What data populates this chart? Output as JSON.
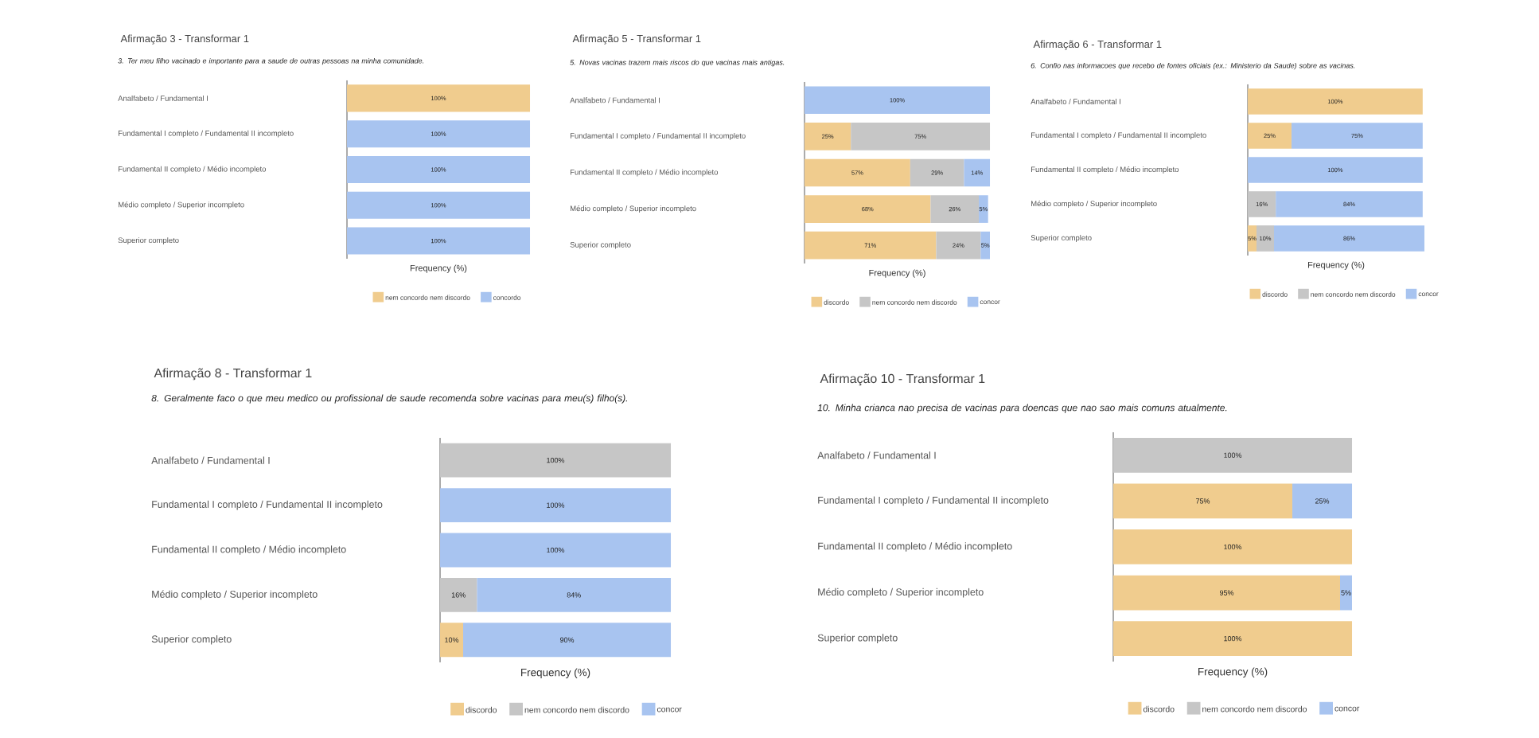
{
  "chart_data": [
    {
      "type": "bar",
      "orientation": "horizontal",
      "stacked": true,
      "legend": "bottom",
      "title": "Afirmação 3 - Transformar 1",
      "subtitle": "3. Ter meu filho vacinado e importante para a saude de outras pessoas na minha comunidade.",
      "xlabel": "Frequency (%)",
      "categories": [
        "Analfabeto / Fundamental I",
        "Fundamental I completo / Fundamental II incompleto",
        "Fundamental II completo / Médio incompleto",
        "Médio completo / Superior incompleto",
        "Superior completo"
      ],
      "series": [
        {
          "name": "nem concordo nem discordo",
          "color": "#f0cc8e",
          "values": [
            100,
            null,
            null,
            null,
            null
          ],
          "value_labels": [
            "100%",
            null,
            null,
            null,
            null
          ]
        },
        {
          "name": "concordo",
          "color": "#a8c4f0",
          "values": [
            null,
            100,
            100,
            100,
            100
          ],
          "value_labels": [
            null,
            "100%",
            "100%",
            "100%",
            "100%"
          ]
        }
      ]
    },
    {
      "type": "bar",
      "orientation": "horizontal",
      "stacked": true,
      "legend": "bottom",
      "title": "Afirmação 5 - Transformar 1",
      "subtitle": "5. Novas vacinas trazem mais riscos do que vacinas mais antigas.",
      "xlabel": "Frequency (%)",
      "categories": [
        "Analfabeto / Fundamental I",
        "Fundamental I completo / Fundamental II incompleto",
        "Fundamental II completo / Médio incompleto",
        "Médio completo / Superior incompleto",
        "Superior completo"
      ],
      "series": [
        {
          "name": "discordo",
          "color": "#f0cc8e",
          "values": [
            null,
            25,
            57,
            68,
            71
          ],
          "value_labels": [
            null,
            "25%",
            "57%",
            "68%",
            "71%"
          ]
        },
        {
          "name": "nem concordo nem discordo",
          "color": "#c6c6c6",
          "values": [
            null,
            75,
            29,
            26,
            24
          ],
          "value_labels": [
            null,
            "75%",
            "29%",
            "26%",
            "24%"
          ]
        },
        {
          "name": "concor",
          "color": "#a8c4f0",
          "values": [
            100,
            null,
            14,
            5,
            5
          ],
          "value_labels": [
            "100%",
            null,
            "14%",
            "5%",
            "5%"
          ]
        }
      ]
    },
    {
      "type": "bar",
      "orientation": "horizontal",
      "stacked": true,
      "legend": "bottom",
      "title": "Afirmação 6 - Transformar 1",
      "subtitle": "6. Confio nas informacoes que recebo de fontes oficiais (ex.: Ministerio da Saude) sobre as vacinas.",
      "xlabel": "Frequency (%)",
      "categories": [
        "Analfabeto / Fundamental I",
        "Fundamental I completo / Fundamental II incompleto",
        "Fundamental II completo / Médio incompleto",
        "Médio completo / Superior incompleto",
        "Superior completo"
      ],
      "series": [
        {
          "name": "discordo",
          "color": "#f0cc8e",
          "values": [
            100,
            25,
            null,
            null,
            5
          ],
          "value_labels": [
            "100%",
            "25%",
            null,
            null,
            "5%"
          ]
        },
        {
          "name": "nem concordo nem discordo",
          "color": "#c6c6c6",
          "values": [
            null,
            null,
            null,
            16,
            10
          ],
          "value_labels": [
            null,
            null,
            null,
            "16%",
            "10%"
          ]
        },
        {
          "name": "concor",
          "color": "#a8c4f0",
          "values": [
            null,
            75,
            100,
            84,
            86
          ],
          "value_labels": [
            null,
            "75%",
            "100%",
            "84%",
            "86%"
          ]
        }
      ]
    },
    {
      "type": "bar",
      "orientation": "horizontal",
      "stacked": true,
      "legend": "bottom",
      "title": "Afirmação 8 - Transformar 1",
      "subtitle": "8. Geralmente faco o que meu medico ou profissional de saude recomenda sobre vacinas para meu(s) filho(s).",
      "xlabel": "Frequency (%)",
      "categories": [
        "Analfabeto / Fundamental I",
        "Fundamental I completo / Fundamental II incompleto",
        "Fundamental II completo / Médio incompleto",
        "Médio completo / Superior incompleto",
        "Superior completo"
      ],
      "series": [
        {
          "name": "discordo",
          "color": "#f0cc8e",
          "values": [
            null,
            null,
            null,
            null,
            10
          ],
          "value_labels": [
            null,
            null,
            null,
            null,
            "10%"
          ]
        },
        {
          "name": "nem concordo nem discordo",
          "color": "#c6c6c6",
          "values": [
            100,
            null,
            null,
            16,
            null
          ],
          "value_labels": [
            "100%",
            null,
            null,
            "16%",
            null
          ]
        },
        {
          "name": "concor",
          "color": "#a8c4f0",
          "values": [
            null,
            100,
            100,
            84,
            90
          ],
          "value_labels": [
            null,
            "100%",
            "100%",
            "84%",
            "90%"
          ]
        }
      ]
    },
    {
      "type": "bar",
      "orientation": "horizontal",
      "stacked": true,
      "legend": "bottom",
      "title": "Afirmação 10 - Transformar 1",
      "subtitle": "10. Minha crianca nao precisa de vacinas para doencas que nao sao mais comuns atualmente.",
      "xlabel": "Frequency (%)",
      "categories": [
        "Analfabeto / Fundamental I",
        "Fundamental I completo / Fundamental II incompleto",
        "Fundamental II completo / Médio incompleto",
        "Médio completo / Superior incompleto",
        "Superior completo"
      ],
      "series": [
        {
          "name": "discordo",
          "color": "#f0cc8e",
          "values": [
            null,
            75,
            100,
            95,
            100
          ],
          "value_labels": [
            null,
            "75%",
            "100%",
            "95%",
            "100%"
          ]
        },
        {
          "name": "nem concordo nem discordo",
          "color": "#c6c6c6",
          "values": [
            100,
            null,
            null,
            null,
            null
          ],
          "value_labels": [
            "100%",
            null,
            null,
            null,
            null
          ]
        },
        {
          "name": "concor",
          "color": "#a8c4f0",
          "values": [
            null,
            25,
            null,
            5,
            null
          ],
          "value_labels": [
            null,
            "25%",
            null,
            "5%",
            null
          ]
        }
      ]
    }
  ]
}
